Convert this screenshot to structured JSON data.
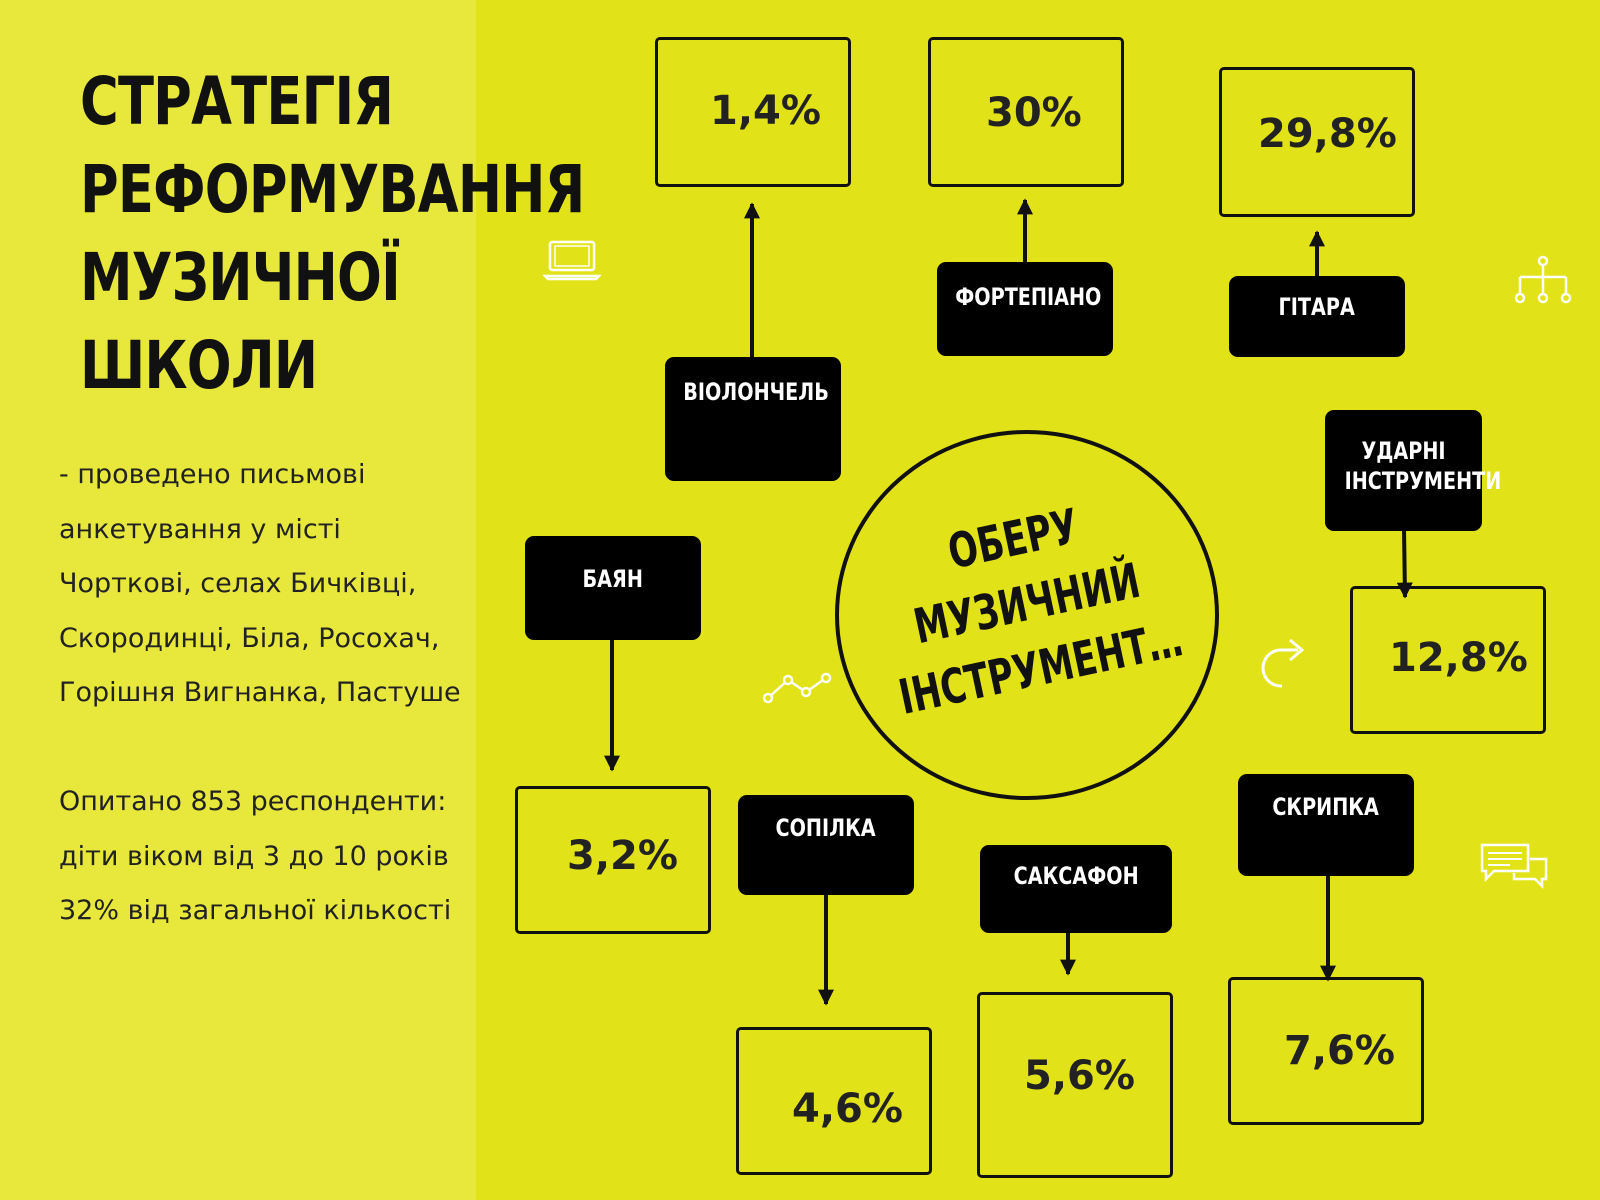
{
  "title_lines": [
    "СТРАТЕГІЯ",
    "РЕФОРМУВАННЯ",
    "МУЗИЧНОЇ",
    "ШКОЛИ"
  ],
  "survey_lines": [
    "- проведено письмові",
    "анкетування у місті",
    "Чорткові, селах Бичківці,",
    "Скородинці, Біла, Росохач,",
    "Горішня Вигнанка, Пастуше"
  ],
  "respondents_lines": [
    "Опитано 853 респонденти:",
    "діти віком від 3 до 10 років",
    "32% від загальної кількості"
  ],
  "center_lines": [
    "ОБЕРУ",
    "МУЗИЧНИЙ",
    "ІНСТРУМЕНТ…"
  ],
  "instruments": [
    {
      "id": "violoncello",
      "label_lines": [
        "ВІОЛОНЧЕЛЬ"
      ],
      "value": "1,4%"
    },
    {
      "id": "piano",
      "label_lines": [
        "ФОРТЕПІАНО"
      ],
      "value": "30%"
    },
    {
      "id": "guitar",
      "label_lines": [
        "ГІТАРА"
      ],
      "value": "29,8%"
    },
    {
      "id": "percussion",
      "label_lines": [
        "УДАРНІ",
        "ІНСТРУМЕНТИ"
      ],
      "value": "12,8%"
    },
    {
      "id": "bayan",
      "label_lines": [
        "БАЯН"
      ],
      "value": "3,2%"
    },
    {
      "id": "sopilka",
      "label_lines": [
        "СОПІЛКА"
      ],
      "value": "4,6%"
    },
    {
      "id": "saxophone",
      "label_lines": [
        "САКСАФОН"
      ],
      "value": "5,6%"
    },
    {
      "id": "violin",
      "label_lines": [
        "СКРИПКА"
      ],
      "value": "7,6%"
    }
  ],
  "colors": {
    "background": "#E2E218",
    "left_panel": "#E8E83C",
    "label_fill": "#000000",
    "stroke": "#111111",
    "icon": "#FFFFFF"
  },
  "icons": [
    "laptop-icon",
    "hierarchy-icon",
    "line-chart-icon",
    "redo-arrow-icon",
    "chat-bubbles-icon"
  ]
}
